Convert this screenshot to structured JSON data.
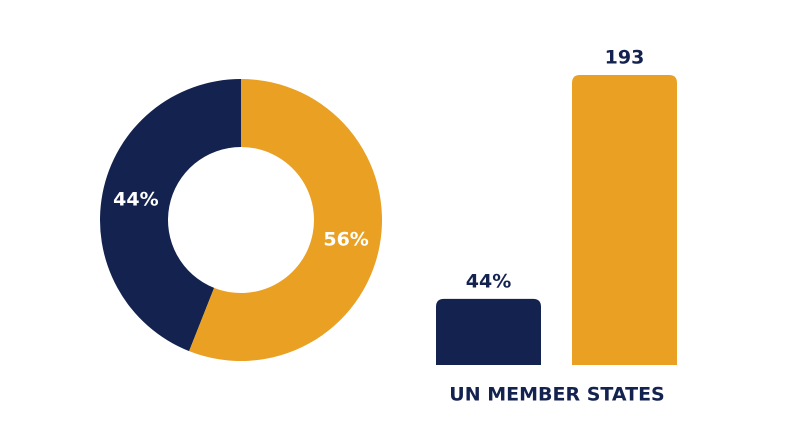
{
  "chart_data": [
    {
      "type": "donut",
      "values": [
        44,
        56
      ],
      "value_labels": [
        "44%",
        "56%"
      ],
      "colors": [
        "#13224f",
        "#e9a023"
      ]
    },
    {
      "type": "bar",
      "categories": [
        null,
        null
      ],
      "values": [
        44,
        193
      ],
      "value_labels": [
        "44%",
        "193"
      ],
      "colors": [
        "#13224f",
        "#e9a023"
      ],
      "x_label": "UN MEMBER STATES"
    }
  ]
}
